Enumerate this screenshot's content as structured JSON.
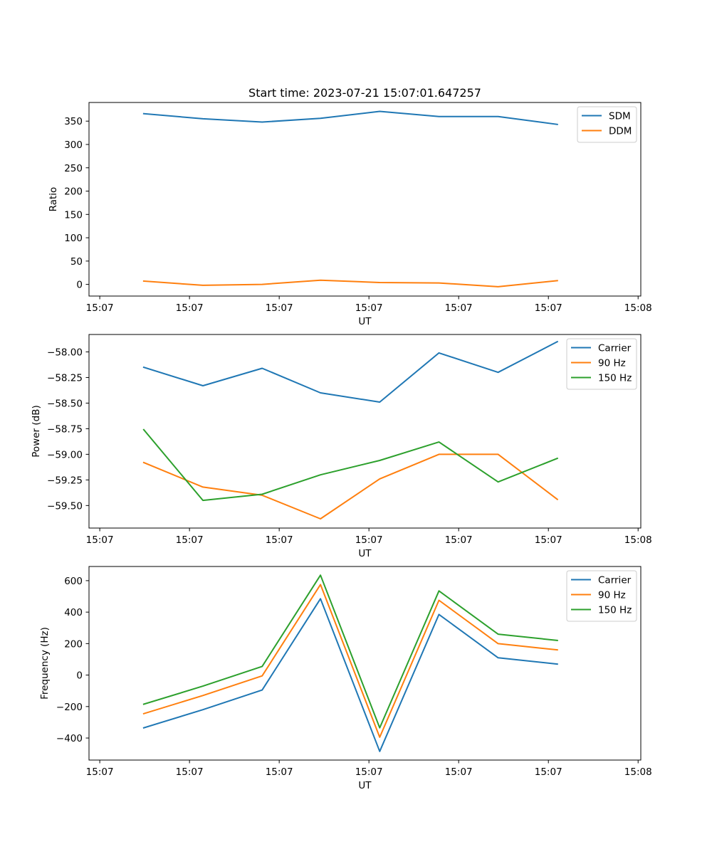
{
  "figure_title": "Start time: 2023-07-21 15:07:01.647257",
  "chart_data": [
    {
      "type": "line",
      "title": "Start time: 2023-07-21 15:07:01.647257",
      "xlabel": "UT",
      "ylabel": "Ratio",
      "x_tick_labels": [
        "15:07",
        "15:07",
        "15:07",
        "15:07",
        "15:07",
        "15:07",
        "15:08"
      ],
      "x_tick_values": [
        0,
        1,
        2,
        3,
        4,
        5,
        6
      ],
      "xlim": [
        -0.12,
        6.03
      ],
      "x": [
        0.49,
        1.15,
        1.81,
        2.46,
        3.12,
        3.78,
        4.44,
        5.1
      ],
      "ylim": [
        -25,
        390
      ],
      "y_ticks": [
        0,
        50,
        100,
        150,
        200,
        250,
        300,
        350
      ],
      "y_tick_labels": [
        "0",
        "50",
        "100",
        "150",
        "200",
        "250",
        "300",
        "350"
      ],
      "legend_position": "top-right",
      "series": [
        {
          "name": "SDM",
          "color": "#1f77b4",
          "values": [
            366,
            355,
            348,
            356,
            371,
            360,
            360,
            343
          ]
        },
        {
          "name": "DDM",
          "color": "#ff7f0e",
          "values": [
            7,
            -2,
            0,
            9,
            4,
            3,
            -5,
            8
          ]
        }
      ]
    },
    {
      "type": "line",
      "title": "",
      "xlabel": "UT",
      "ylabel": "Power (dB)",
      "x_tick_labels": [
        "15:07",
        "15:07",
        "15:07",
        "15:07",
        "15:07",
        "15:07",
        "15:08"
      ],
      "x_tick_values": [
        0,
        1,
        2,
        3,
        4,
        5,
        6
      ],
      "xlim": [
        -0.12,
        6.03
      ],
      "x": [
        0.49,
        1.15,
        1.81,
        2.46,
        3.12,
        3.78,
        4.44,
        5.1
      ],
      "ylim": [
        -59.72,
        -57.83
      ],
      "y_ticks": [
        -59.5,
        -59.25,
        -59.0,
        -58.75,
        -58.5,
        -58.25,
        -58.0
      ],
      "y_tick_labels": [
        "−59.50",
        "−59.25",
        "−59.00",
        "−58.75",
        "−58.50",
        "−58.25",
        "−58.00"
      ],
      "legend_position": "top-right",
      "series": [
        {
          "name": "Carrier",
          "color": "#1f77b4",
          "values": [
            -58.15,
            -58.33,
            -58.16,
            -58.4,
            -58.49,
            -58.01,
            -58.2,
            -57.9
          ]
        },
        {
          "name": "90 Hz",
          "color": "#ff7f0e",
          "values": [
            -59.08,
            -59.32,
            -59.4,
            -59.63,
            -59.24,
            -59.0,
            -59.0,
            -59.44
          ]
        },
        {
          "name": "150 Hz",
          "color": "#2ca02c",
          "values": [
            -58.76,
            -59.45,
            -59.39,
            -59.2,
            -59.06,
            -58.88,
            -59.27,
            -59.04
          ]
        }
      ]
    },
    {
      "type": "line",
      "title": "",
      "xlabel": "UT",
      "ylabel": "Frequency (Hz)",
      "x_tick_labels": [
        "15:07",
        "15:07",
        "15:07",
        "15:07",
        "15:07",
        "15:07",
        "15:08"
      ],
      "x_tick_values": [
        0,
        1,
        2,
        3,
        4,
        5,
        6
      ],
      "xlim": [
        -0.12,
        6.03
      ],
      "x": [
        0.49,
        1.15,
        1.81,
        2.46,
        3.12,
        3.78,
        4.44,
        5.1
      ],
      "ylim": [
        -540,
        690
      ],
      "y_ticks": [
        -400,
        -200,
        0,
        200,
        400,
        600
      ],
      "y_tick_labels": [
        "−400",
        "−200",
        "0",
        "200",
        "400",
        "600"
      ],
      "legend_position": "top-right",
      "series": [
        {
          "name": "Carrier",
          "color": "#1f77b4",
          "values": [
            -335,
            -220,
            -95,
            485,
            -485,
            385,
            110,
            70
          ]
        },
        {
          "name": "90 Hz",
          "color": "#ff7f0e",
          "values": [
            -245,
            -130,
            -5,
            575,
            -395,
            475,
            200,
            160
          ]
        },
        {
          "name": "150 Hz",
          "color": "#2ca02c",
          "values": [
            -185,
            -70,
            55,
            635,
            -335,
            535,
            260,
            220
          ]
        }
      ]
    }
  ]
}
